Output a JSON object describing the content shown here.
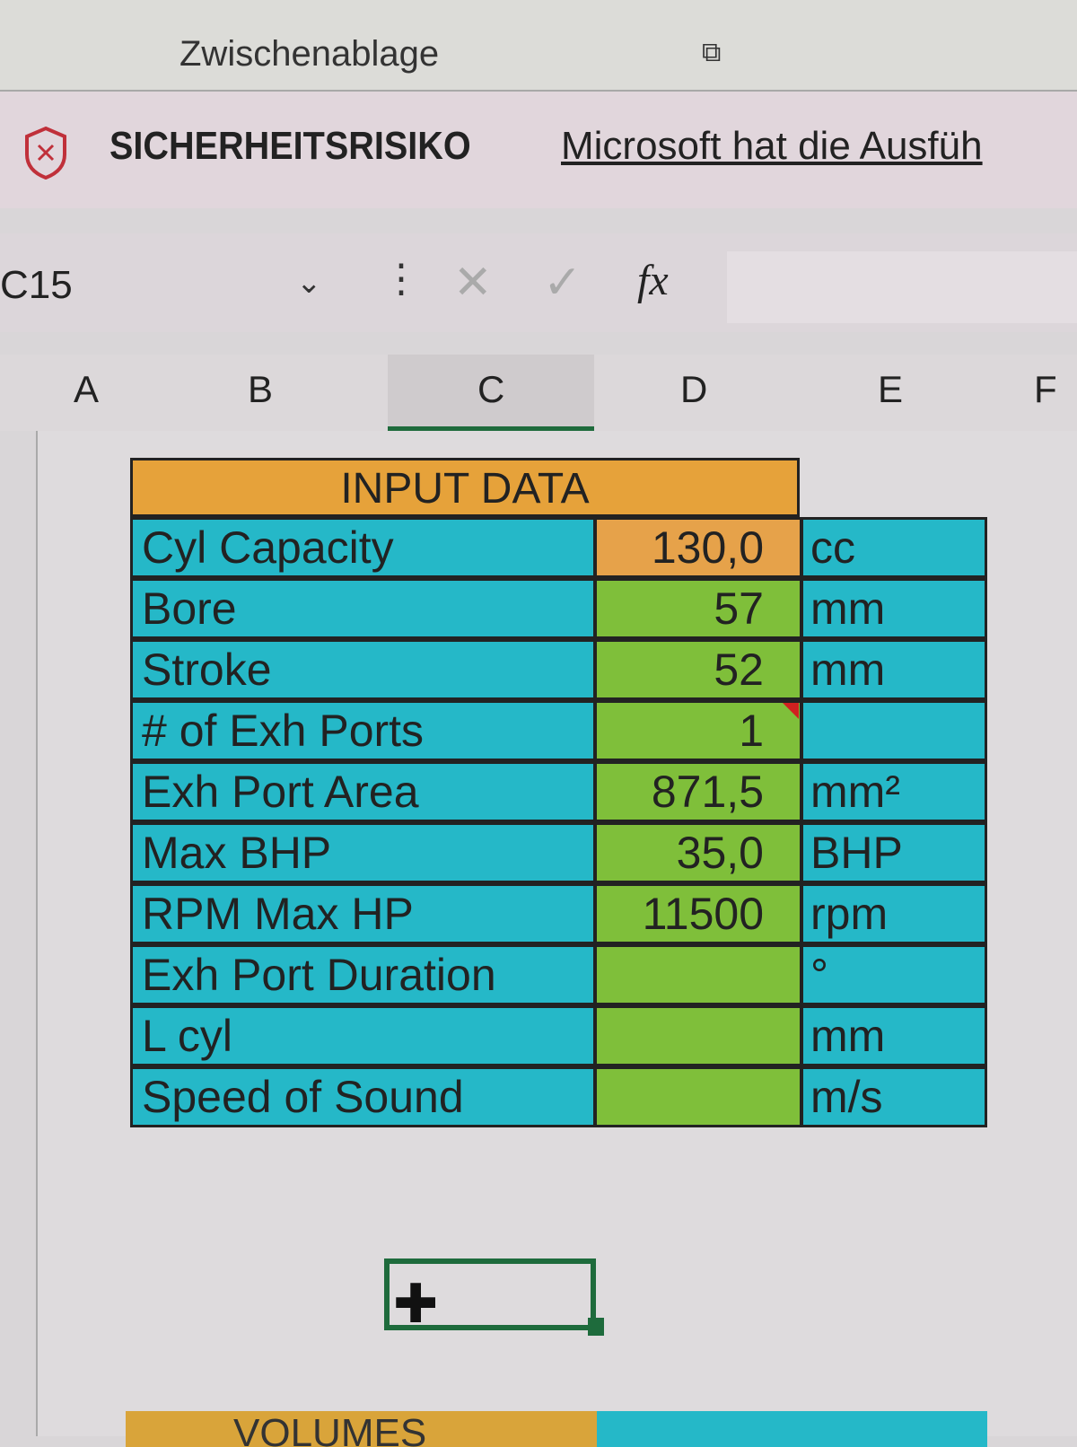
{
  "ribbon": {
    "group_label": "Zwischenablage",
    "launcher_icon": "dialog-launcher-icon"
  },
  "message_bar": {
    "title": "SICHERHEITSRISIKO",
    "message": "Microsoft hat die Ausfüh",
    "icon": "shield-x-icon",
    "icon_color": "#c0303a"
  },
  "formula_bar": {
    "name_box": "C15",
    "dropdown": "⌄",
    "cancel": "✕",
    "enter": "✓",
    "fx": "fx",
    "formula": ""
  },
  "columns": [
    "A",
    "B",
    "C",
    "D",
    "E",
    "F"
  ],
  "selected_column": "C",
  "table": {
    "header": "INPUT DATA",
    "rows": [
      {
        "label": "Cyl Capacity",
        "value": "130,0",
        "unit": "cc"
      },
      {
        "label": "Bore",
        "value": "57",
        "unit": "mm"
      },
      {
        "label": "Stroke",
        "value": "52",
        "unit": "mm"
      },
      {
        "label": "# of Exh Ports",
        "value": "1",
        "unit": "",
        "comment": true
      },
      {
        "label": "Exh Port Area",
        "value": "871,5",
        "unit": "mm²"
      },
      {
        "label": "Max BHP",
        "value": "35,0",
        "unit": "BHP"
      },
      {
        "label": "RPM Max HP",
        "value": "11500",
        "unit": "rpm"
      },
      {
        "label": "Exh Port Duration",
        "value": "",
        "unit": "°"
      },
      {
        "label": "L cyl",
        "value": "",
        "unit": "mm"
      },
      {
        "label": "Speed of Sound",
        "value": "",
        "unit": "m/s"
      }
    ],
    "colors": {
      "header": "#e6a23a",
      "label": "#25b8c8",
      "value": "#7fbf3a"
    }
  },
  "next_section": {
    "header": "VOLUMES"
  }
}
